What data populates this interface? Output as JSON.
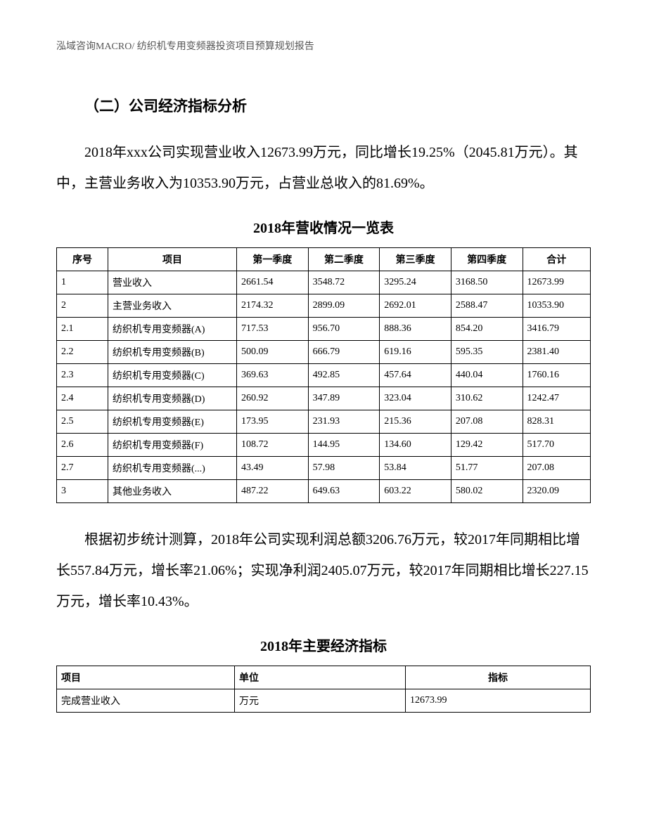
{
  "header": "泓域咨询MACRO/   纺织机专用变频器投资项目预算规划报告",
  "section_title": "（二）公司经济指标分析",
  "paragraph1": "2018年xxx公司实现营业收入12673.99万元，同比增长19.25%（2045.81万元）。其中，主营业务收入为10353.90万元，占营业总收入的81.69%。",
  "table1": {
    "title": "2018年营收情况一览表",
    "columns": [
      "序号",
      "项目",
      "第一季度",
      "第二季度",
      "第三季度",
      "第四季度",
      "合计"
    ],
    "rows": [
      [
        "1",
        "营业收入",
        "2661.54",
        "3548.72",
        "3295.24",
        "3168.50",
        "12673.99"
      ],
      [
        "2",
        "主营业务收入",
        "2174.32",
        "2899.09",
        "2692.01",
        "2588.47",
        "10353.90"
      ],
      [
        "2.1",
        "纺织机专用变频器(A)",
        "717.53",
        "956.70",
        "888.36",
        "854.20",
        "3416.79"
      ],
      [
        "2.2",
        "纺织机专用变频器(B)",
        "500.09",
        "666.79",
        "619.16",
        "595.35",
        "2381.40"
      ],
      [
        "2.3",
        "纺织机专用变频器(C)",
        "369.63",
        "492.85",
        "457.64",
        "440.04",
        "1760.16"
      ],
      [
        "2.4",
        "纺织机专用变频器(D)",
        "260.92",
        "347.89",
        "323.04",
        "310.62",
        "1242.47"
      ],
      [
        "2.5",
        "纺织机专用变频器(E)",
        "173.95",
        "231.93",
        "215.36",
        "207.08",
        "828.31"
      ],
      [
        "2.6",
        "纺织机专用变频器(F)",
        "108.72",
        "144.95",
        "134.60",
        "129.42",
        "517.70"
      ],
      [
        "2.7",
        "纺织机专用变频器(...)",
        "43.49",
        "57.98",
        "53.84",
        "51.77",
        "207.08"
      ],
      [
        "3",
        "其他业务收入",
        "487.22",
        "649.63",
        "603.22",
        "580.02",
        "2320.09"
      ]
    ]
  },
  "paragraph2": "根据初步统计测算，2018年公司实现利润总额3206.76万元，较2017年同期相比增长557.84万元，增长率21.06%；实现净利润2405.07万元，较2017年同期相比增长227.15万元，增长率10.43%。",
  "table2": {
    "title": "2018年主要经济指标",
    "columns": [
      "项目",
      "单位",
      "指标"
    ],
    "rows": [
      [
        "完成营业收入",
        "万元",
        "12673.99"
      ]
    ]
  }
}
